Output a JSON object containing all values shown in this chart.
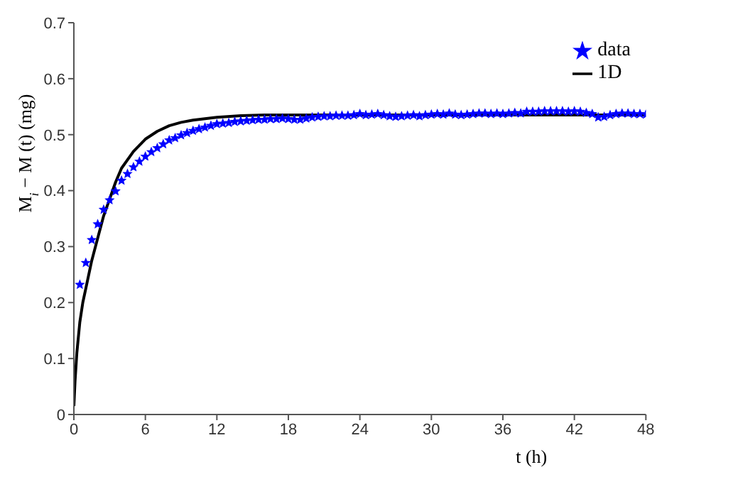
{
  "chart_data": {
    "type": "scatter",
    "xlabel": "t (h)",
    "ylabel": "M$_{i}$ − M (t) (mg)",
    "xlim": [
      0,
      48
    ],
    "ylim": [
      0,
      0.7
    ],
    "xticks": [
      0,
      6,
      12,
      18,
      24,
      30,
      36,
      42,
      48
    ],
    "yticks": [
      0,
      0.1,
      0.2,
      0.3,
      0.4,
      0.5,
      0.6,
      0.7
    ],
    "legend": "top right",
    "grid": false,
    "series": [
      {
        "name": "data",
        "marker": "star",
        "color": "#0000ff",
        "x": [
          0.5,
          1,
          1.5,
          2,
          2.5,
          3,
          3.5,
          4,
          4.5,
          5,
          5.5,
          6,
          6.5,
          7,
          7.5,
          8,
          8.5,
          9,
          9.5,
          10,
          10.5,
          11,
          11.5,
          12,
          12.5,
          13,
          13.5,
          14,
          14.5,
          15,
          15.5,
          16,
          16.5,
          17,
          17.5,
          18,
          18.5,
          19,
          19.5,
          20,
          20.5,
          21,
          21.5,
          22,
          22.5,
          23,
          23.5,
          24,
          24.5,
          25,
          25.5,
          26,
          26.5,
          27,
          27.5,
          28,
          28.5,
          29,
          29.5,
          30,
          30.5,
          31,
          31.5,
          32,
          32.5,
          33,
          33.5,
          34,
          34.5,
          35,
          35.5,
          36,
          36.5,
          37,
          37.5,
          38,
          38.5,
          39,
          39.5,
          40,
          40.5,
          41,
          41.5,
          42,
          42.5,
          43,
          43.5,
          44,
          44.5,
          45,
          45.5,
          46,
          46.5,
          47,
          47.5,
          48
        ],
        "values": [
          0.232,
          0.271,
          0.312,
          0.34,
          0.366,
          0.383,
          0.399,
          0.418,
          0.43,
          0.442,
          0.452,
          0.461,
          0.469,
          0.476,
          0.483,
          0.49,
          0.494,
          0.499,
          0.503,
          0.507,
          0.51,
          0.513,
          0.516,
          0.519,
          0.52,
          0.521,
          0.523,
          0.524,
          0.525,
          0.526,
          0.527,
          0.527,
          0.528,
          0.528,
          0.529,
          0.528,
          0.527,
          0.527,
          0.529,
          0.531,
          0.532,
          0.533,
          0.533,
          0.534,
          0.534,
          0.534,
          0.535,
          0.537,
          0.535,
          0.536,
          0.537,
          0.535,
          0.533,
          0.532,
          0.533,
          0.534,
          0.535,
          0.533,
          0.535,
          0.536,
          0.537,
          0.536,
          0.538,
          0.536,
          0.535,
          0.536,
          0.537,
          0.538,
          0.538,
          0.537,
          0.538,
          0.537,
          0.538,
          0.539,
          0.538,
          0.541,
          0.541,
          0.541,
          0.542,
          0.542,
          0.542,
          0.542,
          0.541,
          0.542,
          0.541,
          0.539,
          0.537,
          0.531,
          0.532,
          0.535,
          0.537,
          0.538,
          0.538,
          0.537,
          0.537,
          0.536
        ]
      },
      {
        "name": "1D",
        "type": "line",
        "marker": "none",
        "line_style": "solid",
        "color": "#000000",
        "x": [
          0,
          0.1,
          0.25,
          0.5,
          0.75,
          1,
          1.5,
          2,
          2.5,
          3,
          3.5,
          4,
          5,
          6,
          7,
          8,
          9,
          10,
          12,
          14,
          16,
          20,
          30,
          40,
          48
        ],
        "values": [
          0.015,
          0.06,
          0.11,
          0.165,
          0.2,
          0.225,
          0.275,
          0.315,
          0.355,
          0.385,
          0.415,
          0.44,
          0.47,
          0.492,
          0.506,
          0.516,
          0.522,
          0.526,
          0.531,
          0.534,
          0.535,
          0.535,
          0.535,
          0.535,
          0.535
        ]
      }
    ]
  }
}
